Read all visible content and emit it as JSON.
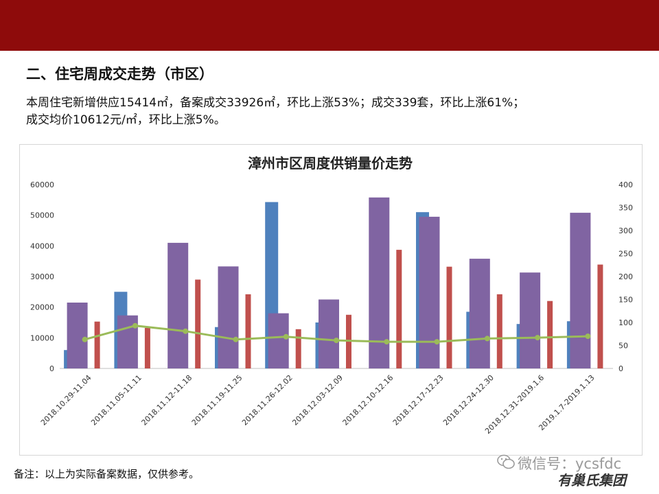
{
  "header": {
    "section_title": "二、住宅周成交走势（市区）",
    "summary_line1": "本周住宅新增供应15414㎡，备案成交33926㎡，环比上涨53%；成交339套，环比上涨61%；",
    "summary_line2": "成交均价10612元/㎡，环比上涨5%。"
  },
  "footer": {
    "note": "备注：以上为实际备案数据，仅供参考。",
    "watermark": "微信号：ycsfdc",
    "brand": "有巢氏集团"
  },
  "colors": {
    "topbar": "#8e0b0b",
    "supply": "#4f81bd",
    "area": "#8064a2",
    "price": "#c0504d",
    "units": "#9bbb59"
  },
  "chart_data": {
    "type": "bar",
    "title": "漳州市区周度供销量价走势",
    "categories": [
      "2018.10.29-11.04",
      "2018.11.05-11.11",
      "2018.11.12-11.18",
      "2018.11.19-11.25",
      "2018.11.26-12.02",
      "2018.12.03-12.09",
      "2018.12.10-12.16",
      "2018.12.17-12.23",
      "2018.12.24-12.30",
      "2018.12.31-2019.1.6",
      "2019.1.7-2019.1.13"
    ],
    "series": [
      {
        "type": "bar",
        "axis": "left",
        "values": [
          6000,
          25000,
          0,
          13500,
          54300,
          15000,
          0,
          51000,
          18500,
          14500,
          15400
        ]
      },
      {
        "type": "bar",
        "axis": "left",
        "values": [
          21500,
          17300,
          41000,
          33300,
          18000,
          22500,
          55800,
          49500,
          35800,
          31300,
          50800
        ]
      },
      {
        "type": "bar",
        "axis": "left",
        "values": [
          15300,
          13200,
          29000,
          24200,
          12800,
          17500,
          38700,
          33200,
          24200,
          22000,
          33900
        ]
      },
      {
        "type": "line",
        "axis": "right",
        "values": [
          63,
          93,
          81,
          63,
          69,
          61,
          58,
          58,
          65,
          67,
          70
        ]
      }
    ],
    "y_left": {
      "min": 0,
      "max": 60000,
      "ticks": [
        0,
        10000,
        20000,
        30000,
        40000,
        50000,
        60000
      ]
    },
    "y_right": {
      "min": 0,
      "max": 400,
      "ticks": [
        0,
        50,
        100,
        150,
        200,
        250,
        300,
        350,
        400
      ]
    },
    "grid": false,
    "legend": "none"
  }
}
